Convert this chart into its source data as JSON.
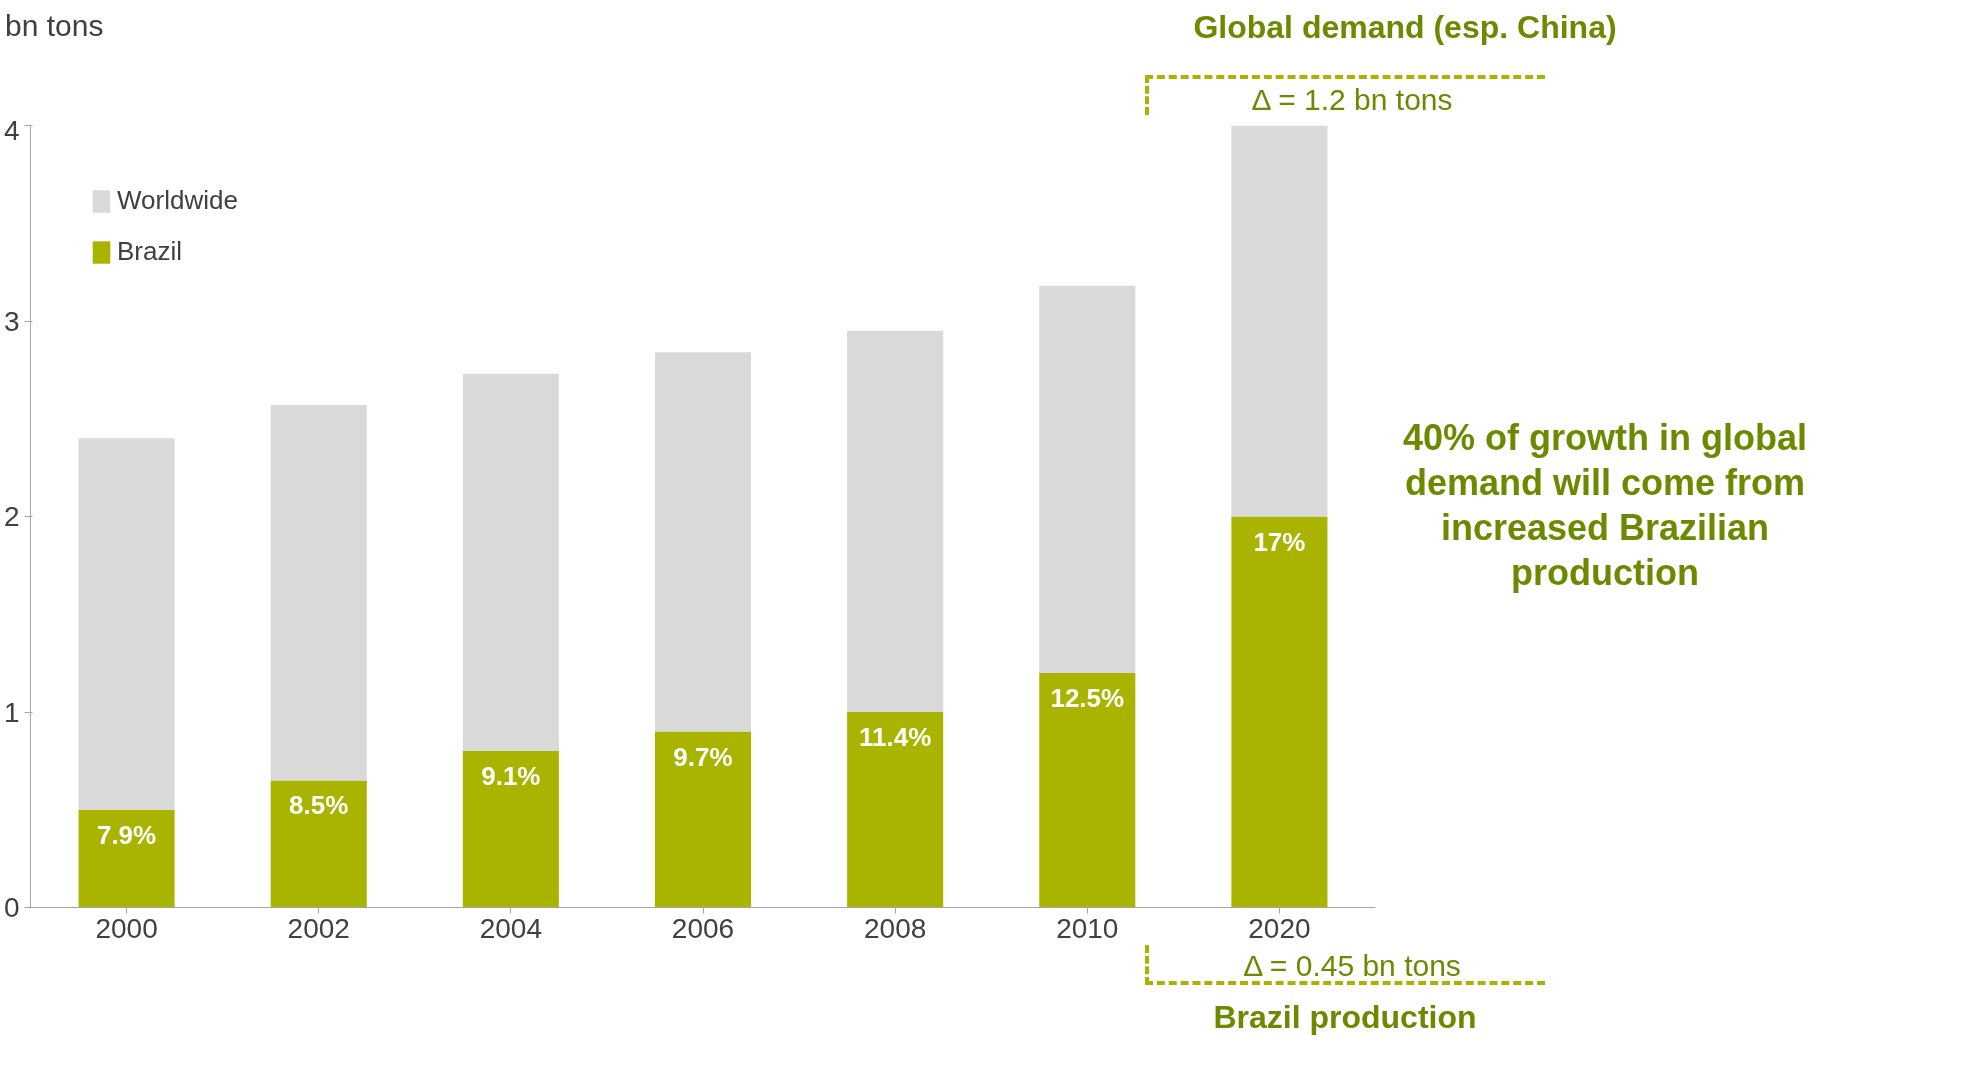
{
  "chart_data": {
    "type": "bar",
    "stacked": true,
    "ylabel": "bn tons",
    "categories": [
      "2000",
      "2002",
      "2004",
      "2006",
      "2008",
      "2010",
      "2020"
    ],
    "series": [
      {
        "name": "Brazil",
        "color": "#a8b400",
        "values": [
          0.5,
          0.65,
          0.8,
          0.9,
          1.0,
          1.2,
          2.0
        ]
      },
      {
        "name": "Worldwide",
        "color": "#d9d9d9",
        "values": [
          1.9,
          1.92,
          1.93,
          1.94,
          1.95,
          1.98,
          2.0
        ]
      }
    ],
    "ylim": [
      0,
      4
    ],
    "yticks": [
      0,
      1,
      2,
      3,
      4
    ],
    "grid": false,
    "legend": "top left",
    "annotations": [
      {
        "text": "7.9%",
        "x": "2000",
        "y": 0.5
      },
      {
        "text": "8.5%",
        "x": "2002",
        "y": 0.65
      },
      {
        "text": "9.1%",
        "x": "2004",
        "y": 0.8
      },
      {
        "text": "9.7%",
        "x": "2006",
        "y": 0.9
      },
      {
        "text": "11.4%",
        "x": "2008",
        "y": 1.0
      },
      {
        "text": "12.5%",
        "x": "2010",
        "y": 1.2
      },
      {
        "text": "17%",
        "x": "2020",
        "y": 2.0
      },
      "Global demand (esp. China)",
      "Δ = 1.2 bn tons",
      "40% of growth in global demand will come from increased Brazilian production",
      "Δ = 0.45 bn tons",
      "Brazil production"
    ]
  }
}
